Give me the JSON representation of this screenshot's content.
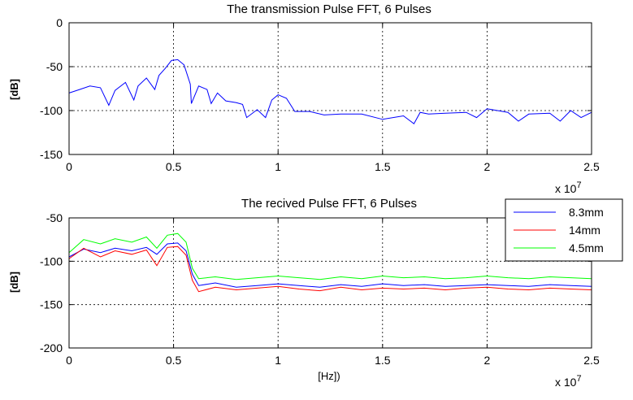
{
  "chart_data": [
    {
      "type": "line",
      "title": "The transmission Pulse FFT, 6 Pulses",
      "xlabel": "",
      "ylabel": "[dB]",
      "x_exponent_label": "x 10",
      "x_exponent": "7",
      "xlim": [
        0,
        25000000
      ],
      "ylim": [
        -150,
        0
      ],
      "x_ticks": [
        0,
        5000000,
        10000000,
        15000000,
        20000000,
        25000000
      ],
      "x_tick_labels": [
        "0",
        "0.5",
        "1",
        "1.5",
        "2",
        "2.5"
      ],
      "y_ticks": [
        -150,
        -100,
        -50,
        0
      ],
      "y_tick_labels": [
        "-150",
        "-100",
        "-50",
        "0"
      ],
      "grid": true,
      "series": [
        {
          "color": "#0000ff",
          "x": [
            0,
            500000,
            1000000,
            1500000,
            1900000,
            2200000,
            2700000,
            3100000,
            3300000,
            3700000,
            4100000,
            4300000,
            4600000,
            4900000,
            5200000,
            5500000,
            5800000,
            5850000,
            6200000,
            6600000,
            6800000,
            7100000,
            7500000,
            8000000,
            8300000,
            8500000,
            9000000,
            9400000,
            9700000,
            10000000,
            10400000,
            10800000,
            11500000,
            12200000,
            13000000,
            14000000,
            15000000,
            16000000,
            16500000,
            16800000,
            17200000,
            18000000,
            19000000,
            19500000,
            20000000,
            21000000,
            21500000,
            22000000,
            23000000,
            23500000,
            24000000,
            24500000,
            25000000
          ],
          "values": [
            -80,
            -76,
            -72,
            -74,
            -94,
            -77,
            -68,
            -88,
            -72,
            -63,
            -76,
            -60,
            -52,
            -43,
            -42,
            -48,
            -70,
            -92,
            -72,
            -76,
            -92,
            -80,
            -89,
            -91,
            -93,
            -108,
            -99,
            -108,
            -88,
            -82,
            -86,
            -101,
            -101,
            -105,
            -104,
            -104,
            -110,
            -106,
            -115,
            -102,
            -104,
            -103,
            -102,
            -108,
            -98,
            -102,
            -112,
            -104,
            -103,
            -112,
            -100,
            -108,
            -102
          ]
        }
      ]
    },
    {
      "type": "line",
      "title": "The recived Pulse FFT, 6 Pulses",
      "xlabel": "[Hz])",
      "ylabel": "[dB]",
      "x_exponent_label": "x 10",
      "x_exponent": "7",
      "xlim": [
        0,
        25000000
      ],
      "ylim": [
        -200,
        -50
      ],
      "x_ticks": [
        0,
        5000000,
        10000000,
        15000000,
        20000000,
        25000000
      ],
      "x_tick_labels": [
        "0",
        "0.5",
        "1",
        "1.5",
        "2",
        "2.5"
      ],
      "y_ticks": [
        -200,
        -150,
        -100,
        -50
      ],
      "y_tick_labels": [
        "-200",
        "-150",
        "-100",
        "-50"
      ],
      "grid": true,
      "legend_position": "top-right",
      "series": [
        {
          "name": "8.3mm",
          "color": "#0000ff",
          "x": [
            0,
            700000,
            1500000,
            2200000,
            3000000,
            3700000,
            4200000,
            4700000,
            5200000,
            5600000,
            5900000,
            6200000,
            7000000,
            8000000,
            9000000,
            10000000,
            11000000,
            12000000,
            13000000,
            14000000,
            15000000,
            16000000,
            17000000,
            18000000,
            19000000,
            20000000,
            21000000,
            22000000,
            23000000,
            24000000,
            25000000
          ],
          "values": [
            -95,
            -86,
            -90,
            -85,
            -88,
            -84,
            -92,
            -80,
            -79,
            -88,
            -115,
            -128,
            -125,
            -130,
            -128,
            -126,
            -128,
            -130,
            -127,
            -129,
            -126,
            -128,
            -127,
            -129,
            -128,
            -127,
            -128,
            -129,
            -127,
            -128,
            -129
          ]
        },
        {
          "name": "14mm",
          "color": "#ff0000",
          "x": [
            0,
            700000,
            1500000,
            2200000,
            3000000,
            3700000,
            4200000,
            4700000,
            5200000,
            5600000,
            5900000,
            6200000,
            7000000,
            8000000,
            9000000,
            10000000,
            11000000,
            12000000,
            13000000,
            14000000,
            15000000,
            16000000,
            17000000,
            18000000,
            19000000,
            20000000,
            21000000,
            22000000,
            23000000,
            24000000,
            25000000
          ],
          "values": [
            -97,
            -85,
            -95,
            -88,
            -92,
            -87,
            -105,
            -84,
            -83,
            -93,
            -122,
            -135,
            -130,
            -133,
            -131,
            -129,
            -132,
            -134,
            -130,
            -133,
            -131,
            -132,
            -131,
            -133,
            -131,
            -130,
            -132,
            -133,
            -131,
            -132,
            -133
          ]
        },
        {
          "name": "4.5mm",
          "color": "#00ff00",
          "x": [
            0,
            700000,
            1500000,
            2200000,
            3000000,
            3700000,
            4200000,
            4700000,
            5200000,
            5600000,
            5900000,
            6200000,
            7000000,
            8000000,
            9000000,
            10000000,
            11000000,
            12000000,
            13000000,
            14000000,
            15000000,
            16000000,
            17000000,
            18000000,
            19000000,
            20000000,
            21000000,
            22000000,
            23000000,
            24000000,
            25000000
          ],
          "values": [
            -90,
            -75,
            -80,
            -74,
            -78,
            -72,
            -85,
            -70,
            -68,
            -78,
            -108,
            -120,
            -118,
            -121,
            -119,
            -117,
            -119,
            -121,
            -118,
            -120,
            -117,
            -119,
            -118,
            -120,
            -119,
            -117,
            -119,
            -120,
            -118,
            -119,
            -120
          ]
        }
      ]
    }
  ]
}
